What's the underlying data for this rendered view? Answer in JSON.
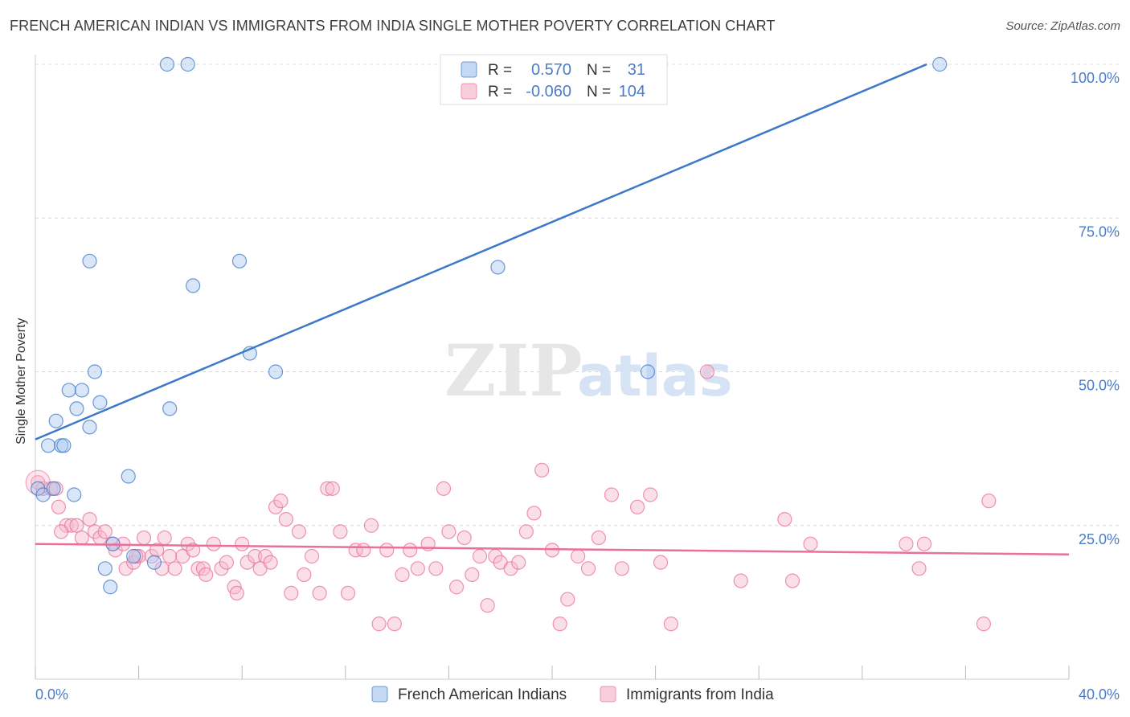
{
  "title": "FRENCH AMERICAN INDIAN VS IMMIGRANTS FROM INDIA SINGLE MOTHER POVERTY CORRELATION CHART",
  "source": "Source: ZipAtlas.com",
  "watermark": {
    "zip": "ZIP",
    "atlas": "atlas"
  },
  "colors": {
    "blue": "#3c78c8",
    "blue_fill": "#a9c8f0",
    "pink": "#e8709a",
    "pink_fill": "#f7b9cd",
    "tick_text": "#4a7cc9",
    "grid": "#d8d8d8"
  },
  "chart_data": {
    "type": "scatter",
    "title": "FRENCH AMERICAN INDIAN VS IMMIGRANTS FROM INDIA SINGLE MOTHER POVERTY CORRELATION CHART",
    "xlabel": "",
    "ylabel": "Single Mother Poverty",
    "xlim": [
      0,
      40
    ],
    "ylim": [
      0,
      102
    ],
    "x_tick_labels": {
      "min": "0.0%",
      "max": "40.0%"
    },
    "y_ticks": [
      {
        "value": 25,
        "label": "25.0%"
      },
      {
        "value": 50,
        "label": "50.0%"
      },
      {
        "value": 75,
        "label": "75.0%"
      },
      {
        "value": 100,
        "label": "100.0%"
      }
    ],
    "legend": {
      "position": "top-center",
      "rows": [
        {
          "r_label": "R =",
          "r_value": "0.570",
          "n_label": "N =",
          "n_value": "31"
        },
        {
          "r_label": "R =",
          "r_value": "-0.060",
          "n_label": "N =",
          "n_value": "104"
        }
      ]
    },
    "bottom_legend": [
      "French American Indians",
      "Immigrants from India"
    ],
    "series": [
      {
        "name": "French American Indians",
        "color": "#3c78c8",
        "trend": {
          "x0": 0,
          "y0": 39,
          "x1": 34.5,
          "y1": 100
        },
        "points": [
          [
            0.1,
            31
          ],
          [
            0.3,
            30
          ],
          [
            0.5,
            38
          ],
          [
            0.7,
            31
          ],
          [
            0.8,
            42
          ],
          [
            1.0,
            38
          ],
          [
            1.1,
            38
          ],
          [
            1.3,
            47
          ],
          [
            1.5,
            30
          ],
          [
            1.6,
            44
          ],
          [
            1.8,
            47
          ],
          [
            2.1,
            41
          ],
          [
            2.3,
            50
          ],
          [
            2.5,
            45
          ],
          [
            2.7,
            18
          ],
          [
            2.9,
            15
          ],
          [
            3.6,
            33
          ],
          [
            3.8,
            20
          ],
          [
            4.6,
            19
          ],
          [
            5.1,
            100
          ],
          [
            5.2,
            44
          ],
          [
            5.9,
            100
          ],
          [
            6.1,
            64
          ],
          [
            2.1,
            68
          ],
          [
            7.9,
            68
          ],
          [
            8.3,
            53
          ],
          [
            9.3,
            50
          ],
          [
            17.9,
            67
          ],
          [
            23.7,
            50
          ],
          [
            35.0,
            100
          ],
          [
            3.0,
            22
          ]
        ]
      },
      {
        "name": "Immigrants from India",
        "color": "#e8709a",
        "trend": {
          "x0": 0,
          "y0": 22,
          "x1": 40,
          "y1": 20.3
        },
        "points": [
          [
            0.1,
            32
          ],
          [
            0.3,
            31
          ],
          [
            0.6,
            31
          ],
          [
            0.8,
            31
          ],
          [
            0.9,
            28
          ],
          [
            1.2,
            25
          ],
          [
            1.4,
            25
          ],
          [
            1.6,
            25
          ],
          [
            1.8,
            23
          ],
          [
            2.1,
            26
          ],
          [
            2.3,
            24
          ],
          [
            2.5,
            23
          ],
          [
            2.7,
            24
          ],
          [
            3.0,
            22
          ],
          [
            3.1,
            21
          ],
          [
            3.4,
            22
          ],
          [
            3.5,
            18
          ],
          [
            3.8,
            19
          ],
          [
            4.0,
            20
          ],
          [
            4.2,
            23
          ],
          [
            4.5,
            20
          ],
          [
            4.7,
            21
          ],
          [
            4.9,
            18
          ],
          [
            5.0,
            23
          ],
          [
            5.2,
            20
          ],
          [
            5.4,
            18
          ],
          [
            5.7,
            20
          ],
          [
            5.9,
            22
          ],
          [
            6.1,
            21
          ],
          [
            6.3,
            18
          ],
          [
            6.5,
            18
          ],
          [
            6.6,
            17
          ],
          [
            6.9,
            22
          ],
          [
            7.2,
            18
          ],
          [
            7.4,
            19
          ],
          [
            7.7,
            15
          ],
          [
            7.8,
            14
          ],
          [
            8.0,
            22
          ],
          [
            8.2,
            19
          ],
          [
            8.5,
            20
          ],
          [
            8.7,
            18
          ],
          [
            8.9,
            20
          ],
          [
            9.1,
            19
          ],
          [
            9.3,
            28
          ],
          [
            9.5,
            29
          ],
          [
            9.7,
            26
          ],
          [
            9.9,
            14
          ],
          [
            10.2,
            24
          ],
          [
            10.4,
            17
          ],
          [
            10.7,
            20
          ],
          [
            11.0,
            14
          ],
          [
            11.3,
            31
          ],
          [
            11.5,
            31
          ],
          [
            11.8,
            24
          ],
          [
            12.1,
            14
          ],
          [
            12.4,
            21
          ],
          [
            12.7,
            21
          ],
          [
            13.0,
            25
          ],
          [
            13.3,
            9
          ],
          [
            13.6,
            21
          ],
          [
            13.9,
            9
          ],
          [
            14.2,
            17
          ],
          [
            14.5,
            21
          ],
          [
            14.8,
            18
          ],
          [
            15.2,
            22
          ],
          [
            15.5,
            18
          ],
          [
            15.8,
            31
          ],
          [
            16.0,
            24
          ],
          [
            16.3,
            15
          ],
          [
            16.6,
            23
          ],
          [
            16.9,
            17
          ],
          [
            17.2,
            20
          ],
          [
            17.5,
            12
          ],
          [
            17.8,
            20
          ],
          [
            18.0,
            19
          ],
          [
            18.4,
            18
          ],
          [
            18.7,
            19
          ],
          [
            19.0,
            24
          ],
          [
            19.3,
            27
          ],
          [
            19.6,
            34
          ],
          [
            20.0,
            21
          ],
          [
            20.3,
            9
          ],
          [
            20.6,
            13
          ],
          [
            21.0,
            20
          ],
          [
            21.4,
            18
          ],
          [
            21.8,
            23
          ],
          [
            22.3,
            30
          ],
          [
            22.7,
            18
          ],
          [
            23.3,
            28
          ],
          [
            23.8,
            30
          ],
          [
            24.2,
            19
          ],
          [
            24.6,
            9
          ],
          [
            26.0,
            50
          ],
          [
            27.3,
            16
          ],
          [
            29.0,
            26
          ],
          [
            29.3,
            16
          ],
          [
            30.0,
            22
          ],
          [
            33.7,
            22
          ],
          [
            34.2,
            18
          ],
          [
            34.4,
            22
          ],
          [
            36.7,
            9
          ],
          [
            36.9,
            29
          ],
          [
            1.0,
            24
          ],
          [
            3.9,
            20
          ]
        ]
      }
    ]
  }
}
